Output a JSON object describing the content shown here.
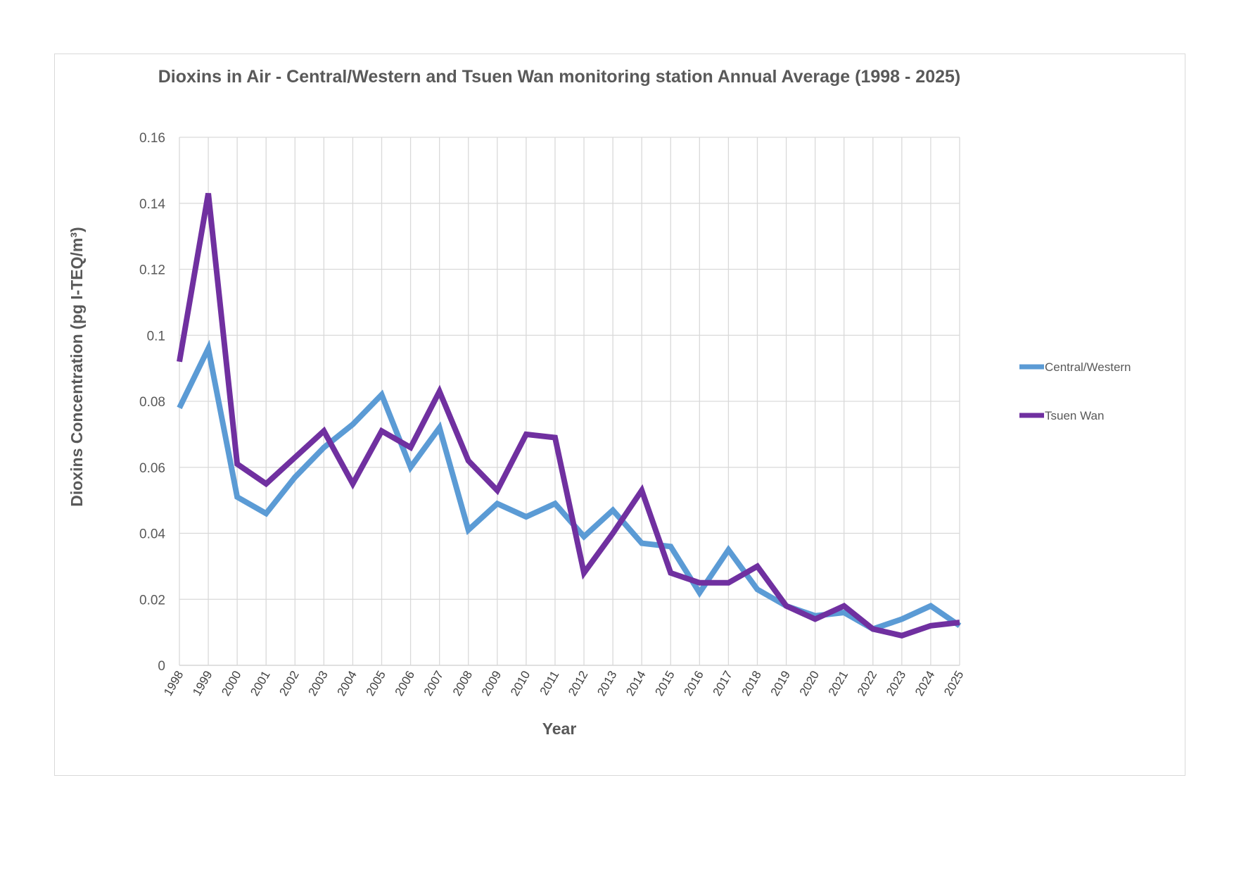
{
  "chart_data": {
    "type": "line",
    "title": "Dioxins in Air - Central/Western and Tsuen Wan monitoring station Annual Average (1998 - 2025)",
    "xlabel": "Year",
    "ylabel": "Dioxins Concentration (pg I-TEQ/m³)",
    "ylim": [
      0,
      0.16
    ],
    "yticks": [
      "0",
      "0.02",
      "0.04",
      "0.06",
      "0.08",
      "0.1",
      "0.12",
      "0.14",
      "0.16"
    ],
    "grid": true,
    "legend_position": "right",
    "categories": [
      "1998",
      "1999",
      "2000",
      "2001",
      "2002",
      "2003",
      "2004",
      "2005",
      "2006",
      "2007",
      "2008",
      "2009",
      "2010",
      "2011",
      "2012",
      "2013",
      "2014",
      "2015",
      "2016",
      "2017",
      "2018",
      "2019",
      "2020",
      "2021",
      "2022",
      "2023",
      "2024",
      "2025"
    ],
    "series": [
      {
        "name": "Central/Western",
        "color": "#5b9bd5",
        "values": [
          0.078,
          0.096,
          0.051,
          0.046,
          0.057,
          0.066,
          0.073,
          0.082,
          0.06,
          0.072,
          0.041,
          0.049,
          0.045,
          0.049,
          0.039,
          0.047,
          0.037,
          0.036,
          0.022,
          0.035,
          0.023,
          0.018,
          0.015,
          0.016,
          0.011,
          0.014,
          0.018,
          0.012
        ]
      },
      {
        "name": "Tsuen Wan",
        "color": "#7030a0",
        "values": [
          0.092,
          0.143,
          0.061,
          0.055,
          0.063,
          0.071,
          0.055,
          0.071,
          0.066,
          0.083,
          0.062,
          0.053,
          0.07,
          0.069,
          0.028,
          0.04,
          0.053,
          0.028,
          0.025,
          0.025,
          0.03,
          0.018,
          0.014,
          0.018,
          0.011,
          0.009,
          0.012,
          0.013
        ]
      }
    ]
  }
}
